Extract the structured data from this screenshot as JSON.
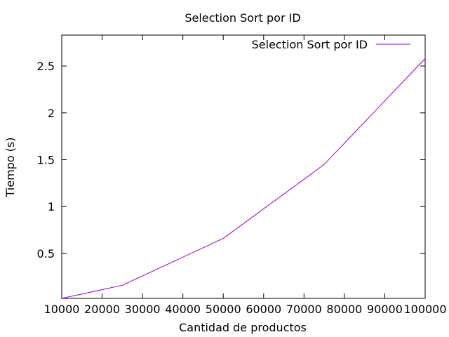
{
  "chart_data": {
    "type": "line",
    "title": "Selection Sort por ID",
    "xlabel": "Cantidad de productos",
    "ylabel": "Tiempo (s)",
    "xlim": [
      10000,
      100000
    ],
    "ylim": [
      0.02,
      2.83
    ],
    "xticks": [
      10000,
      20000,
      30000,
      40000,
      50000,
      60000,
      70000,
      80000,
      90000,
      100000
    ],
    "yticks": [
      0.5,
      1,
      1.5,
      2,
      2.5
    ],
    "grid": false,
    "legend_position": "top-right",
    "series": [
      {
        "name": "Selection Sort por ID",
        "color": "#9400d3",
        "x": [
          10000,
          25000,
          50000,
          75000,
          100000
        ],
        "y": [
          0.02,
          0.16,
          0.66,
          1.45,
          2.58
        ]
      }
    ]
  }
}
